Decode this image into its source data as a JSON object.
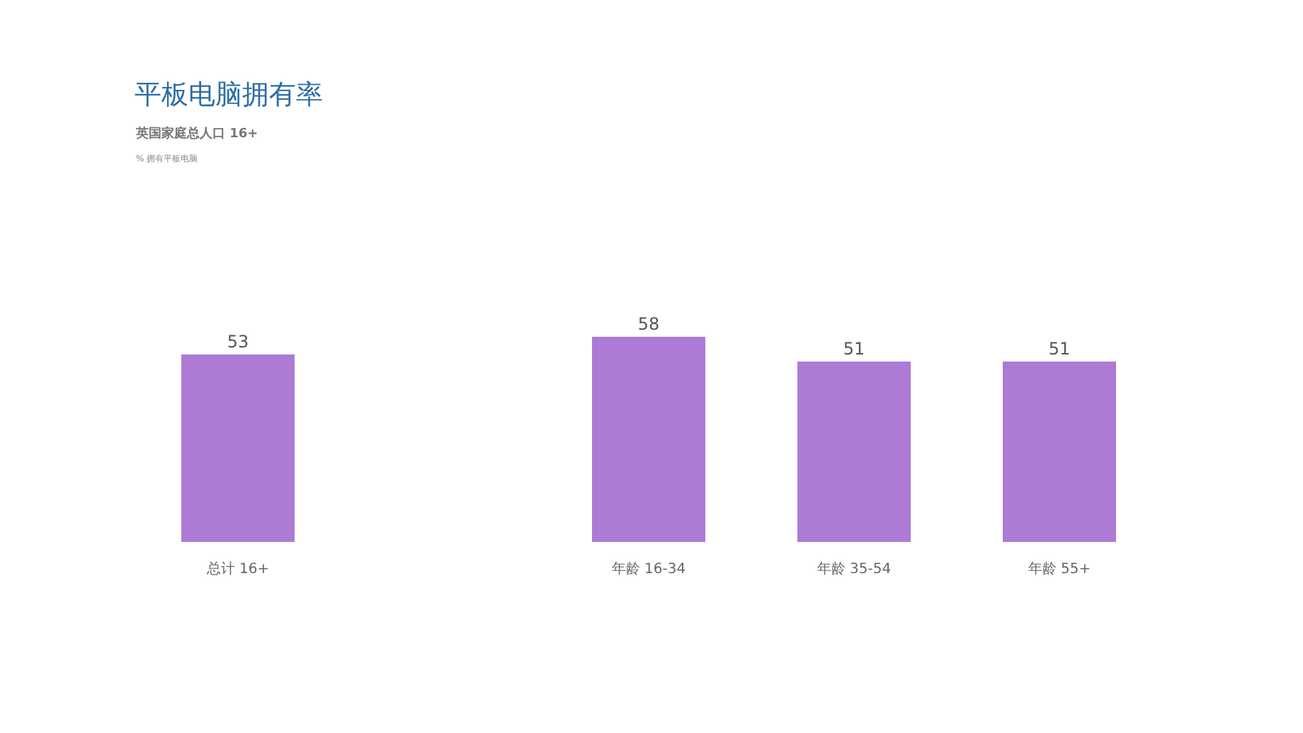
{
  "chart_data": {
    "type": "bar",
    "title": "平板电脑拥有率",
    "subtitle": "英国家庭总人口 16+",
    "annotations": [
      "% 拥有平板电脑"
    ],
    "categories": [
      "总计 16+",
      null,
      "年龄 16-34",
      "年龄 35-54",
      "年龄 55+"
    ],
    "values": [
      53,
      null,
      58,
      51,
      51
    ],
    "color": "#ad7ad6",
    "data_labels": true
  }
}
